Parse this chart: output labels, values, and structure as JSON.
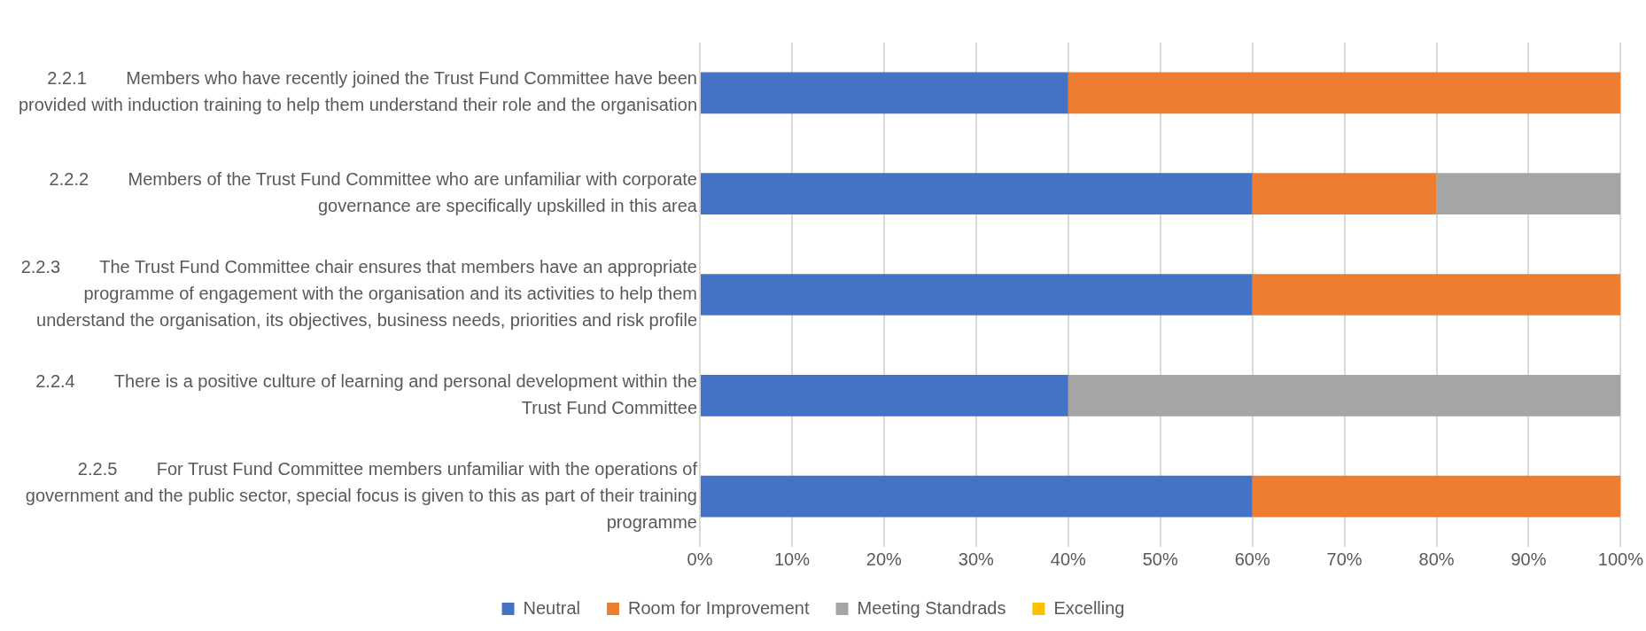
{
  "chart_data": {
    "type": "bar",
    "orientation": "horizontal",
    "stacked": true,
    "categories": [
      "2.2.1        Members who have recently joined the Trust Fund Committee have been provided with induction training to help them understand their role and the organisation",
      "2.2.2        Members of the Trust Fund Committee who are unfamiliar with corporate governance are specifically upskilled in this area",
      "2.2.3        The Trust Fund Committee chair ensures that members have an appropriate programme of engagement with the organisation and its activities to help them understand the organisation, its objectives, business needs, priorities and risk profile",
      "2.2.4        There is a positive culture of learning and personal development within the Trust Fund Committee",
      "2.2.5        For Trust Fund Committee members unfamiliar with the operations of government and the public sector, special focus is given to this as part of their training programme"
    ],
    "series": [
      {
        "name": "Neutral",
        "color": "#4472c4",
        "values": [
          40,
          60,
          60,
          40,
          60
        ]
      },
      {
        "name": "Room for Improvement",
        "color": "#ed7d31",
        "values": [
          60,
          20,
          40,
          0,
          40
        ]
      },
      {
        "name": "Meeting Standrads",
        "color": "#a5a5a5",
        "values": [
          0,
          20,
          0,
          60,
          0
        ]
      },
      {
        "name": "Excelling",
        "color": "#ffc000",
        "values": [
          0,
          0,
          0,
          0,
          0
        ]
      }
    ],
    "xlim": [
      0,
      100
    ],
    "xticks": [
      {
        "value": 0,
        "label": "0%"
      },
      {
        "value": 10,
        "label": "10%"
      },
      {
        "value": 20,
        "label": "20%"
      },
      {
        "value": 30,
        "label": "30%"
      },
      {
        "value": 40,
        "label": "40%"
      },
      {
        "value": 50,
        "label": "50%"
      },
      {
        "value": 60,
        "label": "60%"
      },
      {
        "value": 70,
        "label": "70%"
      },
      {
        "value": 80,
        "label": "80%"
      },
      {
        "value": 90,
        "label": "90%"
      },
      {
        "value": 100,
        "label": "100%"
      }
    ],
    "grid": "x",
    "legend": "bottom"
  }
}
